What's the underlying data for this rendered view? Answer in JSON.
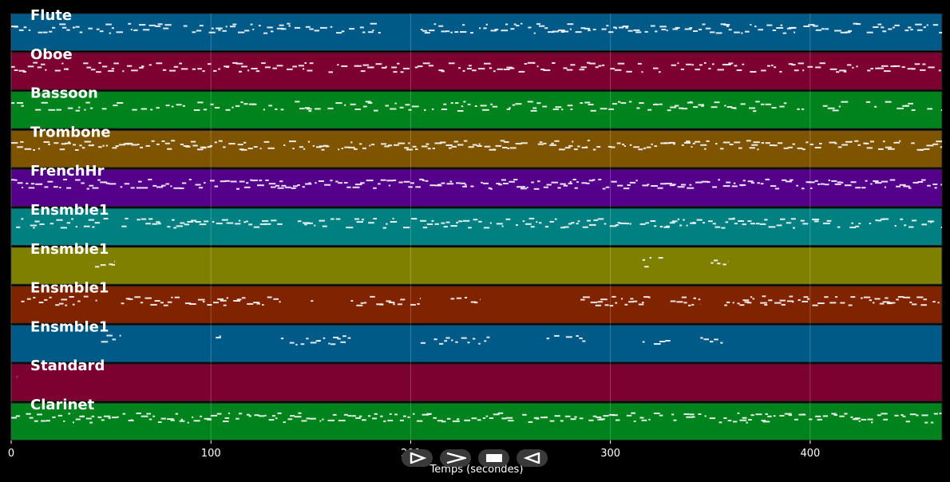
{
  "timeline": {
    "background_color": "#000000",
    "x_axis": {
      "label": "Temps (secondes)",
      "range": [
        0,
        466
      ],
      "ticks": [
        0,
        100,
        200,
        300,
        400
      ],
      "tick_labels": [
        "0",
        "100",
        "200",
        "300",
        "400"
      ]
    },
    "tracks": [
      {
        "name": "Flute",
        "color": "#005a87",
        "density": 0.85,
        "activity": [
          [
            0,
            185
          ],
          [
            205,
            466
          ]
        ]
      },
      {
        "name": "Oboe",
        "color": "#7c0030",
        "density": 0.8,
        "activity": [
          [
            0,
            466
          ]
        ]
      },
      {
        "name": "Bassoon",
        "color": "#00821c",
        "density": 0.65,
        "activity": [
          [
            0,
            466
          ]
        ]
      },
      {
        "name": "Trombone",
        "color": "#7f5400",
        "density": 0.9,
        "activity": [
          [
            0,
            466
          ]
        ]
      },
      {
        "name": "FrenchHr",
        "color": "#55008a",
        "density": 0.95,
        "activity": [
          [
            0,
            466
          ]
        ]
      },
      {
        "name": "Ensmble1",
        "color": "#008080",
        "density": 0.8,
        "activity": [
          [
            0,
            466
          ]
        ]
      },
      {
        "name": "Ensmble1",
        "color": "#808000",
        "density": 0.6,
        "activity": [
          [
            42,
            52
          ],
          [
            316,
            330
          ],
          [
            345,
            359
          ]
        ]
      },
      {
        "name": "Ensmble1",
        "color": "#7f2300",
        "density": 0.9,
        "activity": [
          [
            5,
            45
          ],
          [
            55,
            135
          ],
          [
            150,
            150
          ],
          [
            170,
            205
          ],
          [
            220,
            235
          ],
          [
            285,
            320
          ],
          [
            330,
            345
          ],
          [
            357,
            466
          ]
        ]
      },
      {
        "name": "Ensmble1",
        "color": "#005a87",
        "density": 0.8,
        "activity": [
          [
            45,
            55
          ],
          [
            100,
            105
          ],
          [
            135,
            170
          ],
          [
            205,
            240
          ],
          [
            268,
            288
          ],
          [
            316,
            330
          ],
          [
            345,
            359
          ]
        ]
      },
      {
        "name": "Standard",
        "color": "#7c0030",
        "density": 0.5,
        "activity": [
          [
            1,
            3
          ]
        ]
      },
      {
        "name": "Clarinet",
        "color": "#00821c",
        "density": 0.9,
        "activity": [
          [
            0,
            466
          ]
        ]
      }
    ]
  },
  "transport": {
    "buttons": [
      {
        "name": "play-icon"
      },
      {
        "name": "fast-forward-icon"
      },
      {
        "name": "stop-icon"
      },
      {
        "name": "rewind-icon"
      }
    ]
  }
}
